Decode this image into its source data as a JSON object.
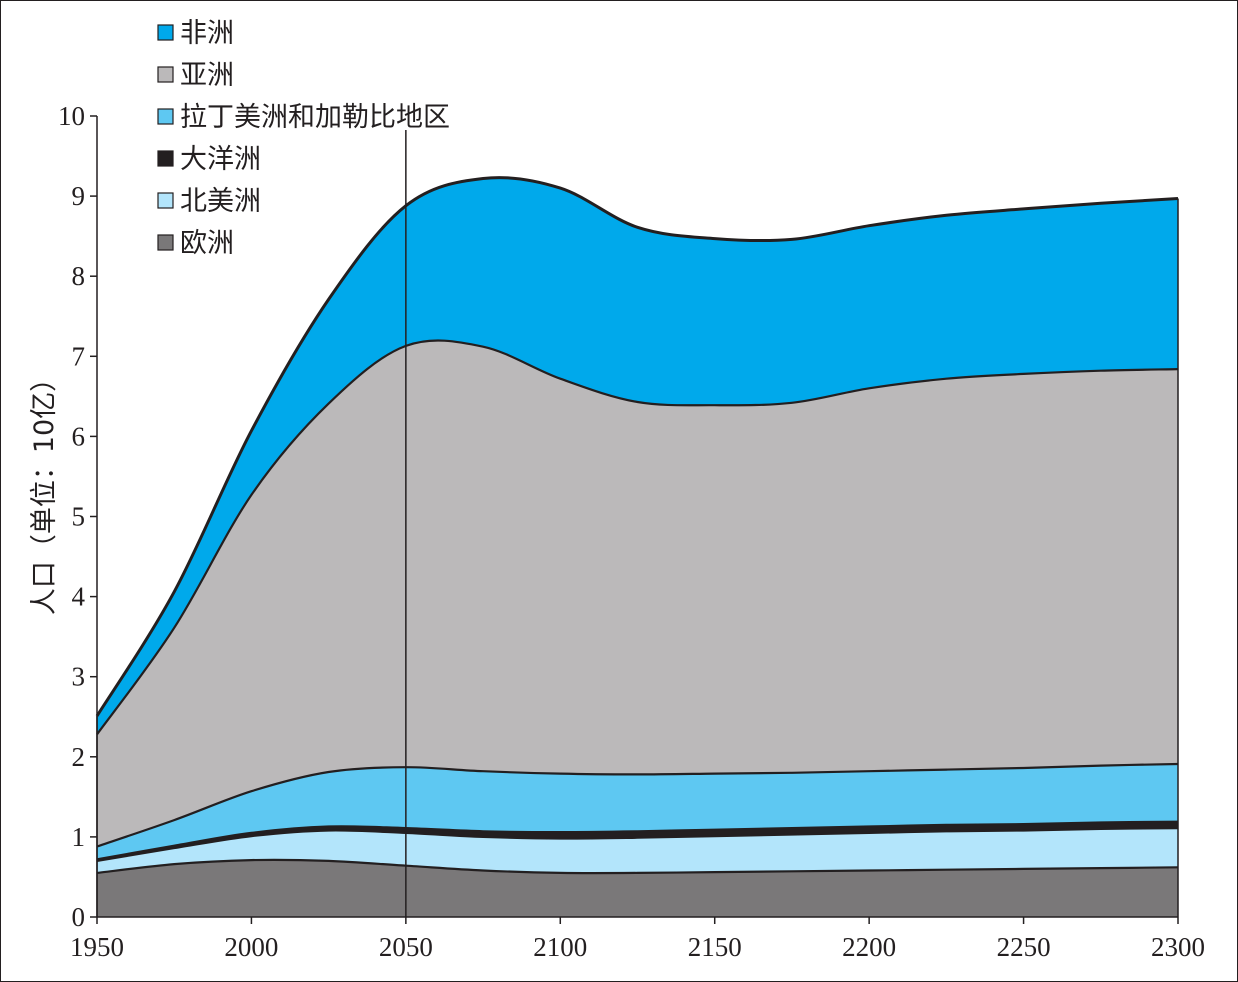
{
  "chart_data": {
    "type": "area",
    "stacked": true,
    "ylabel": "人口（单位：10亿）",
    "xlabel": "",
    "xlim": [
      1950,
      2300
    ],
    "ylim": [
      0,
      10
    ],
    "xticks": [
      1950,
      2000,
      2050,
      2100,
      2150,
      2200,
      2250,
      2300
    ],
    "yticks": [
      0,
      1,
      2,
      3,
      4,
      5,
      6,
      7,
      8,
      9,
      10
    ],
    "reference_line_x": 2050,
    "legend_position": "top-left",
    "x": [
      1950,
      1975,
      2000,
      2025,
      2050,
      2075,
      2100,
      2125,
      2150,
      2175,
      2200,
      2225,
      2250,
      2275,
      2300
    ],
    "series": [
      {
        "name": "欧洲",
        "color": "#7a7879",
        "values": [
          0.55,
          0.66,
          0.71,
          0.7,
          0.64,
          0.58,
          0.55,
          0.55,
          0.56,
          0.57,
          0.58,
          0.59,
          0.6,
          0.61,
          0.62
        ]
      },
      {
        "name": "北美洲",
        "color": "#b3e5fb",
        "values": [
          0.15,
          0.2,
          0.3,
          0.38,
          0.41,
          0.42,
          0.43,
          0.44,
          0.45,
          0.46,
          0.47,
          0.48,
          0.48,
          0.49,
          0.49
        ]
      },
      {
        "name": "大洋洲",
        "color": "#231f20",
        "values": [
          0.02,
          0.03,
          0.04,
          0.05,
          0.06,
          0.07,
          0.08,
          0.08,
          0.08,
          0.08,
          0.08,
          0.08,
          0.08,
          0.08,
          0.08
        ]
      },
      {
        "name": "拉丁美洲和加勒比地区",
        "color": "#5ec8f2",
        "values": [
          0.16,
          0.32,
          0.52,
          0.68,
          0.76,
          0.75,
          0.73,
          0.71,
          0.7,
          0.69,
          0.69,
          0.69,
          0.7,
          0.71,
          0.72
        ]
      },
      {
        "name": "亚洲",
        "color": "#bbb9ba",
        "values": [
          1.4,
          2.4,
          3.7,
          4.6,
          5.26,
          5.3,
          4.93,
          4.65,
          4.6,
          4.62,
          4.78,
          4.88,
          4.92,
          4.93,
          4.93
        ]
      },
      {
        "name": "非洲",
        "color": "#00a9eb",
        "values": [
          0.23,
          0.45,
          0.8,
          1.3,
          1.75,
          2.1,
          2.38,
          2.18,
          2.08,
          2.04,
          2.03,
          2.04,
          2.06,
          2.09,
          2.13
        ]
      }
    ]
  }
}
